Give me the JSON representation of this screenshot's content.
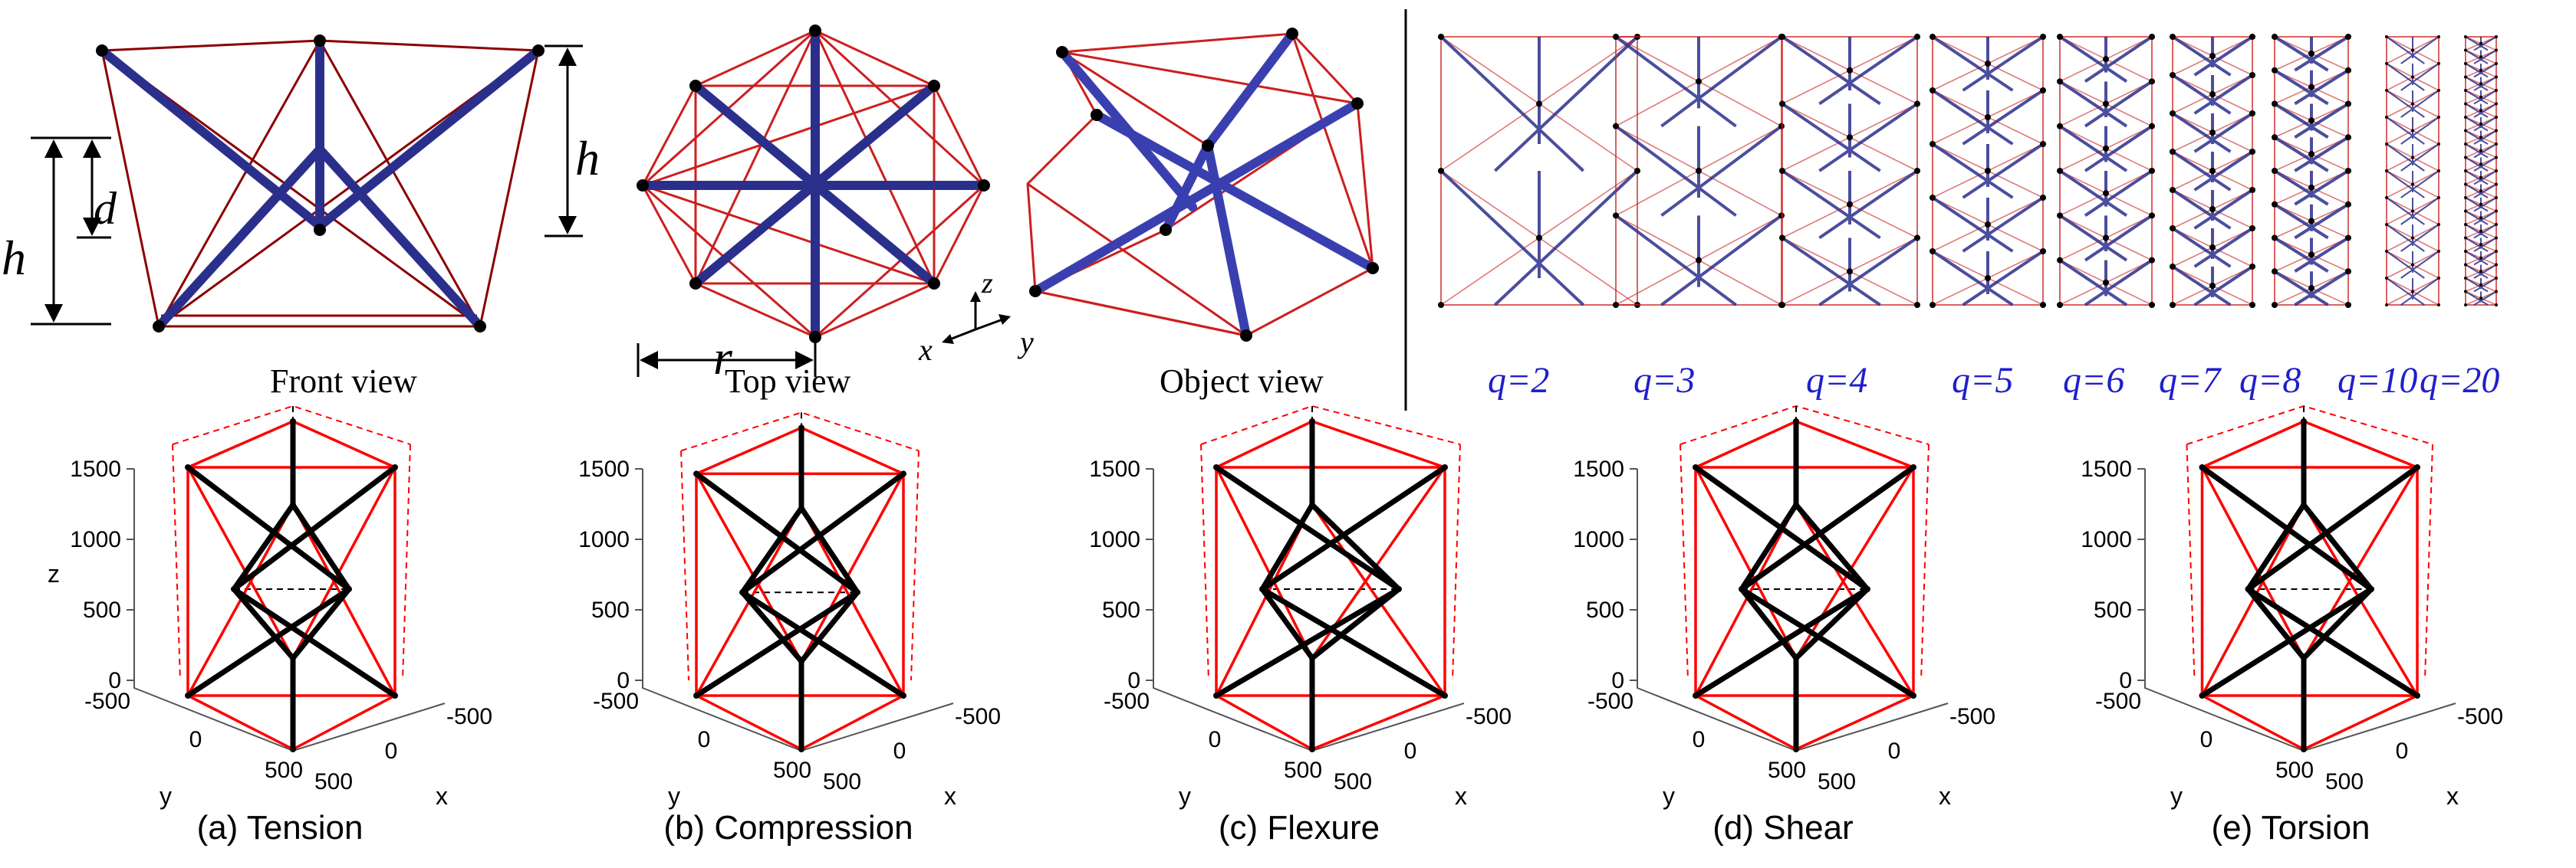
{
  "top": {
    "dim_labels": {
      "h_left": "h",
      "d": "d",
      "h_right": "h",
      "r": "r"
    },
    "views": {
      "front": "Front view",
      "top": "Top view",
      "object": "Object view"
    },
    "axes_triad": {
      "z": "z",
      "x": "x",
      "y": "y"
    },
    "q_labels": [
      "q=2",
      "q=3",
      "q=4",
      "q=5",
      "q=6",
      "q=7",
      "q=8",
      "q=10",
      "q=20"
    ]
  },
  "bottom": {
    "panels": [
      {
        "caption": "(a) Tension"
      },
      {
        "caption": "(b) Compression"
      },
      {
        "caption": "(c) Flexure"
      },
      {
        "caption": "(d) Shear"
      },
      {
        "caption": "(e) Torsion"
      }
    ],
    "z_ticks": [
      "1500",
      "1000",
      "500",
      "0"
    ],
    "y_ticks": [
      "-500",
      "0",
      "500"
    ],
    "x_ticks": [
      "-500",
      "0",
      "500"
    ],
    "z_axis_label": "z",
    "y_axis_label": "y",
    "x_axis_label": "x"
  },
  "colors": {
    "bar": "#2b2f8c",
    "bar_light": "#6b6fd6",
    "string": "#cc1f1f",
    "string_dark": "#8b0000",
    "q_label": "#1f1fcc",
    "load_bar": "#000000",
    "load_string": "#ff0000"
  }
}
